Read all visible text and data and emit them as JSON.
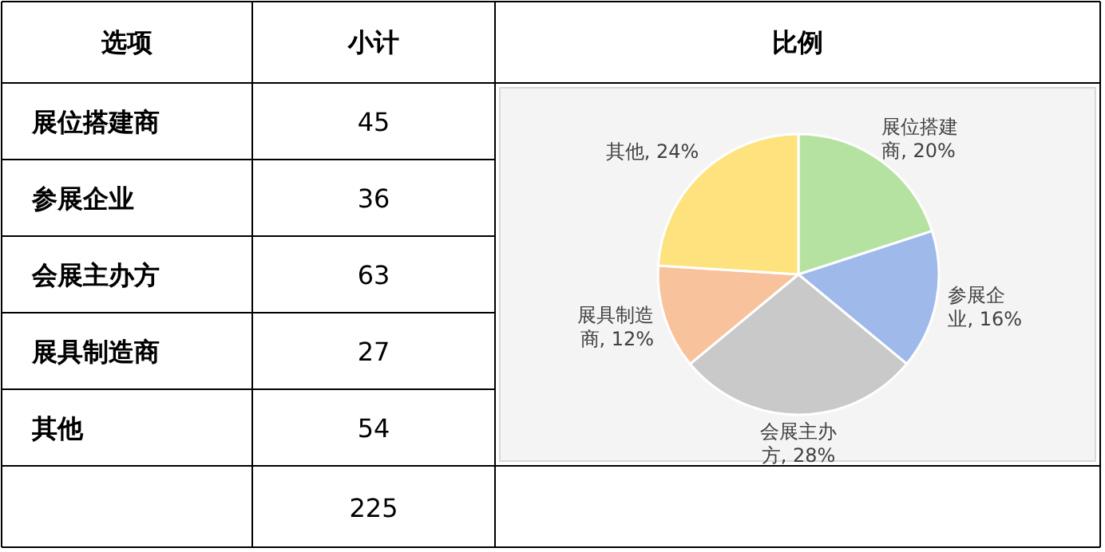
{
  "chart_data": [
    {
      "type": "other",
      "categories": [
        "展位搭建商",
        "参展企业",
        "会展主办方",
        "展具制造商",
        "其他"
      ],
      "values": [
        45,
        36,
        63,
        27,
        54
      ],
      "data_labels": true,
      "annotations": [
        "选项",
        "小计",
        "比例",
        "225"
      ]
    },
    {
      "type": "pie",
      "categories": [
        "展位搭建商",
        "参展企业",
        "会展主办方",
        "展具制造商",
        "其他"
      ],
      "values": [
        20,
        16,
        28,
        12,
        24
      ],
      "colors": [
        "#b6e2a1",
        "#9fb9ea",
        "#c9c9c9",
        "#f8c29c",
        "#fde27e"
      ],
      "value_labels": [
        ", 20%",
        ", 16%",
        ", 28%",
        ", 12%",
        ", 24%"
      ]
    }
  ]
}
